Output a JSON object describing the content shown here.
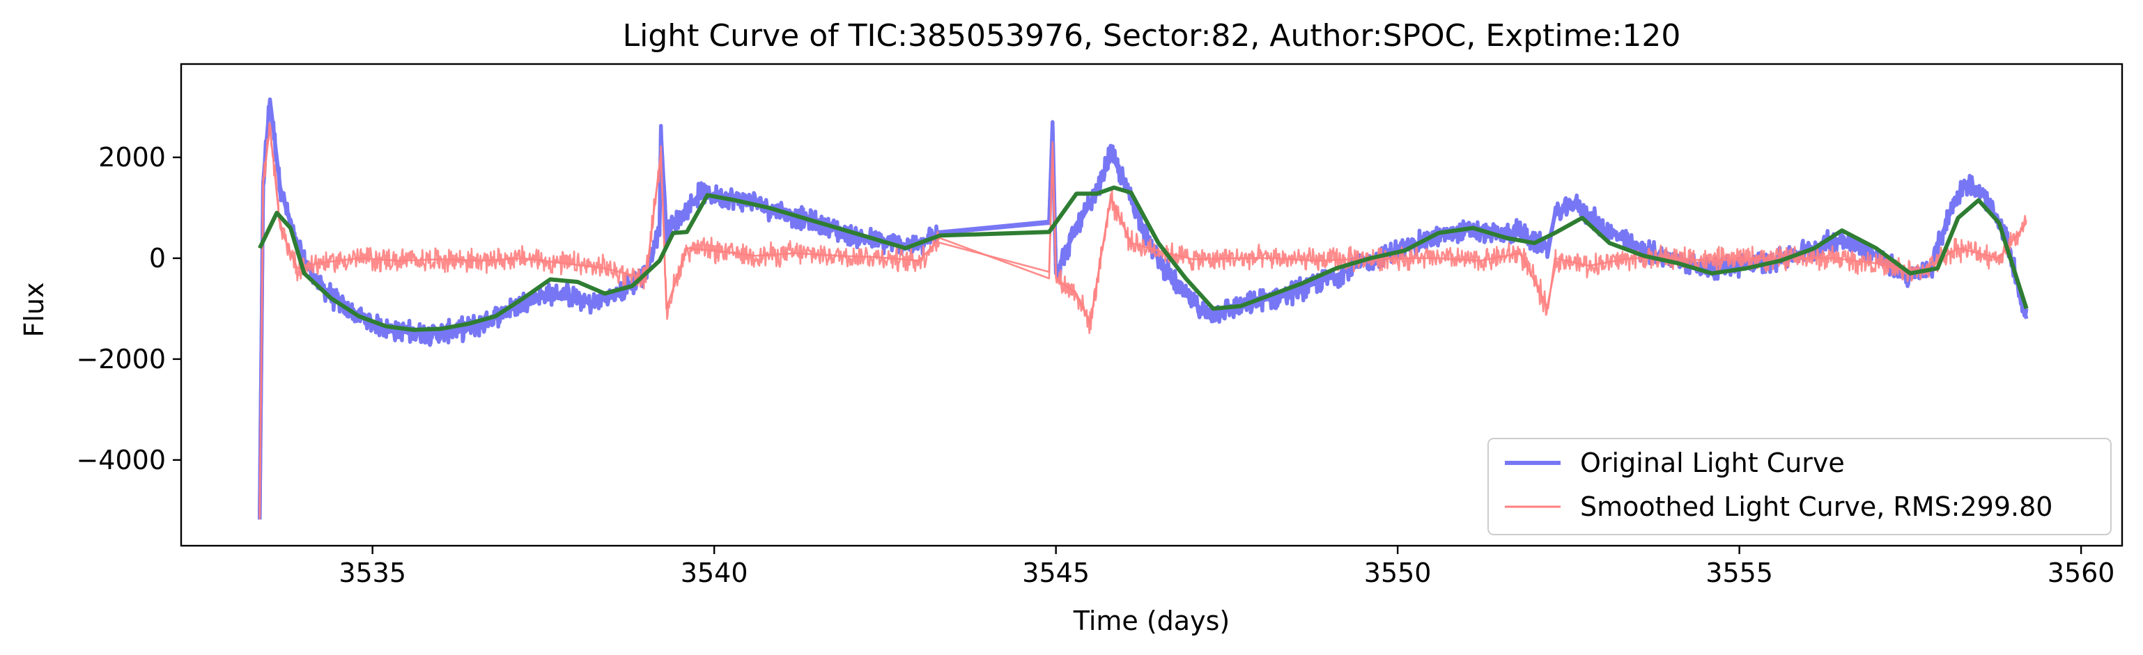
{
  "chart_data": {
    "type": "line",
    "title": "Light Curve of TIC:385053976, Sector:82, Author:SPOC, Exptime:120",
    "xlabel": "Time (days)",
    "ylabel": "Flux",
    "xlim": [
      3532.2,
      3560.6
    ],
    "ylim": [
      -5700,
      3850
    ],
    "xticks": [
      3535,
      3540,
      3545,
      3550,
      3555,
      3560
    ],
    "yticks": [
      -4000,
      -2000,
      0,
      2000
    ],
    "grid": false,
    "legend_position": "lower-right",
    "gaps": [
      [
        3543.3,
        3544.9
      ],
      [
        3552.2,
        3552.3
      ]
    ],
    "series": [
      {
        "name": "Original Light Curve",
        "color": "#7777f5",
        "noise": 260,
        "points": [
          [
            3533.35,
            -5100
          ],
          [
            3533.4,
            1500
          ],
          [
            3533.5,
            3150
          ],
          [
            3533.65,
            1400
          ],
          [
            3533.9,
            200
          ],
          [
            3534.2,
            -500
          ],
          [
            3534.6,
            -1000
          ],
          [
            3535.0,
            -1300
          ],
          [
            3535.4,
            -1450
          ],
          [
            3535.8,
            -1500
          ],
          [
            3536.2,
            -1450
          ],
          [
            3536.6,
            -1300
          ],
          [
            3537.0,
            -1000
          ],
          [
            3537.4,
            -750
          ],
          [
            3537.8,
            -700
          ],
          [
            3538.2,
            -900
          ],
          [
            3538.6,
            -700
          ],
          [
            3539.0,
            -300
          ],
          [
            3539.2,
            600
          ],
          [
            3539.22,
            2500
          ],
          [
            3539.3,
            500
          ],
          [
            3539.5,
            800
          ],
          [
            3539.8,
            1300
          ],
          [
            3540.2,
            1200
          ],
          [
            3540.6,
            1100
          ],
          [
            3541.0,
            900
          ],
          [
            3541.5,
            700
          ],
          [
            3542.0,
            450
          ],
          [
            3542.5,
            300
          ],
          [
            3543.0,
            250
          ],
          [
            3543.3,
            500
          ],
          [
            3544.9,
            700
          ],
          [
            3544.95,
            2700
          ],
          [
            3545.0,
            -300
          ],
          [
            3545.3,
            600
          ],
          [
            3545.6,
            1300
          ],
          [
            3545.8,
            2100
          ],
          [
            3546.1,
            1200
          ],
          [
            3546.4,
            200
          ],
          [
            3546.8,
            -600
          ],
          [
            3547.2,
            -1100
          ],
          [
            3547.6,
            -1000
          ],
          [
            3548.0,
            -850
          ],
          [
            3548.5,
            -650
          ],
          [
            3549.0,
            -400
          ],
          [
            3549.5,
            -100
          ],
          [
            3550.0,
            150
          ],
          [
            3550.5,
            400
          ],
          [
            3551.0,
            550
          ],
          [
            3551.5,
            450
          ],
          [
            3551.8,
            550
          ],
          [
            3552.0,
            300
          ],
          [
            3552.2,
            250
          ],
          [
            3552.3,
            850
          ],
          [
            3552.6,
            1100
          ],
          [
            3553.0,
            600
          ],
          [
            3553.5,
            200
          ],
          [
            3554.0,
            0
          ],
          [
            3554.5,
            -200
          ],
          [
            3555.0,
            -150
          ],
          [
            3555.5,
            -50
          ],
          [
            3556.0,
            150
          ],
          [
            3556.5,
            400
          ],
          [
            3557.0,
            50
          ],
          [
            3557.5,
            -400
          ],
          [
            3557.8,
            -200
          ],
          [
            3558.1,
            1000
          ],
          [
            3558.3,
            1500
          ],
          [
            3558.6,
            1200
          ],
          [
            3558.9,
            400
          ],
          [
            3559.2,
            -1200
          ]
        ]
      },
      {
        "name": "Smoothed Light Curve, RMS:299.80",
        "color": "#ff7f7f",
        "noise": 280,
        "points": [
          [
            3533.35,
            -5100
          ],
          [
            3533.4,
            1500
          ],
          [
            3533.5,
            2600
          ],
          [
            3533.65,
            600
          ],
          [
            3533.9,
            -200
          ],
          [
            3534.2,
            -100
          ],
          [
            3534.8,
            0
          ],
          [
            3535.4,
            -50
          ],
          [
            3536.0,
            -20
          ],
          [
            3536.6,
            -50
          ],
          [
            3537.2,
            0
          ],
          [
            3537.8,
            -100
          ],
          [
            3538.4,
            -200
          ],
          [
            3539.0,
            -400
          ],
          [
            3539.22,
            2100
          ],
          [
            3539.3,
            -1000
          ],
          [
            3539.6,
            200
          ],
          [
            3540.0,
            150
          ],
          [
            3540.6,
            50
          ],
          [
            3541.2,
            100
          ],
          [
            3541.8,
            50
          ],
          [
            3542.4,
            20
          ],
          [
            3543.0,
            -50
          ],
          [
            3543.3,
            400
          ],
          [
            3544.9,
            -400
          ],
          [
            3544.95,
            2300
          ],
          [
            3545.0,
            -400
          ],
          [
            3545.3,
            -700
          ],
          [
            3545.5,
            -1300
          ],
          [
            3545.8,
            1200
          ],
          [
            3546.1,
            300
          ],
          [
            3546.5,
            150
          ],
          [
            3547.0,
            -20
          ],
          [
            3547.6,
            0
          ],
          [
            3548.2,
            0
          ],
          [
            3548.8,
            -50
          ],
          [
            3549.4,
            -20
          ],
          [
            3550.0,
            0
          ],
          [
            3550.6,
            0
          ],
          [
            3551.2,
            -50
          ],
          [
            3551.8,
            100
          ],
          [
            3552.2,
            -1000
          ],
          [
            3552.3,
            0
          ],
          [
            3552.8,
            -150
          ],
          [
            3553.4,
            0
          ],
          [
            3554.0,
            0
          ],
          [
            3554.6,
            -50
          ],
          [
            3555.2,
            0
          ],
          [
            3555.8,
            0
          ],
          [
            3556.4,
            0
          ],
          [
            3557.0,
            -100
          ],
          [
            3557.6,
            -300
          ],
          [
            3558.2,
            200
          ],
          [
            3558.8,
            0
          ],
          [
            3559.2,
            700
          ]
        ]
      },
      {
        "name": "",
        "color": "#2e7d32",
        "noise": 0,
        "points": [
          [
            3533.35,
            200
          ],
          [
            3533.6,
            900
          ],
          [
            3533.8,
            600
          ],
          [
            3534.0,
            -300
          ],
          [
            3534.4,
            -800
          ],
          [
            3534.8,
            -1150
          ],
          [
            3535.2,
            -1350
          ],
          [
            3535.6,
            -1420
          ],
          [
            3536.0,
            -1400
          ],
          [
            3536.4,
            -1300
          ],
          [
            3536.8,
            -1150
          ],
          [
            3537.2,
            -800
          ],
          [
            3537.6,
            -420
          ],
          [
            3538.0,
            -470
          ],
          [
            3538.4,
            -700
          ],
          [
            3538.8,
            -550
          ],
          [
            3539.2,
            -50
          ],
          [
            3539.4,
            500
          ],
          [
            3539.6,
            520
          ],
          [
            3539.9,
            1250
          ],
          [
            3540.3,
            1150
          ],
          [
            3540.8,
            1000
          ],
          [
            3541.3,
            800
          ],
          [
            3541.8,
            600
          ],
          [
            3542.3,
            400
          ],
          [
            3542.8,
            200
          ],
          [
            3543.3,
            450
          ],
          [
            3544.9,
            520
          ],
          [
            3545.3,
            1280
          ],
          [
            3545.6,
            1280
          ],
          [
            3545.85,
            1400
          ],
          [
            3546.1,
            1300
          ],
          [
            3546.5,
            300
          ],
          [
            3546.9,
            -400
          ],
          [
            3547.3,
            -1000
          ],
          [
            3547.7,
            -950
          ],
          [
            3548.1,
            -750
          ],
          [
            3548.6,
            -500
          ],
          [
            3549.1,
            -200
          ],
          [
            3549.6,
            0
          ],
          [
            3550.1,
            150
          ],
          [
            3550.6,
            500
          ],
          [
            3551.1,
            600
          ],
          [
            3551.6,
            400
          ],
          [
            3552.0,
            300
          ],
          [
            3552.3,
            500
          ],
          [
            3552.7,
            800
          ],
          [
            3553.1,
            300
          ],
          [
            3553.6,
            50
          ],
          [
            3554.1,
            -100
          ],
          [
            3554.6,
            -300
          ],
          [
            3555.1,
            -200
          ],
          [
            3555.6,
            -50
          ],
          [
            3556.1,
            200
          ],
          [
            3556.5,
            550
          ],
          [
            3557.0,
            200
          ],
          [
            3557.5,
            -300
          ],
          [
            3557.9,
            -200
          ],
          [
            3558.2,
            800
          ],
          [
            3558.5,
            1150
          ],
          [
            3558.8,
            700
          ],
          [
            3559.2,
            -1000
          ]
        ]
      }
    ]
  }
}
